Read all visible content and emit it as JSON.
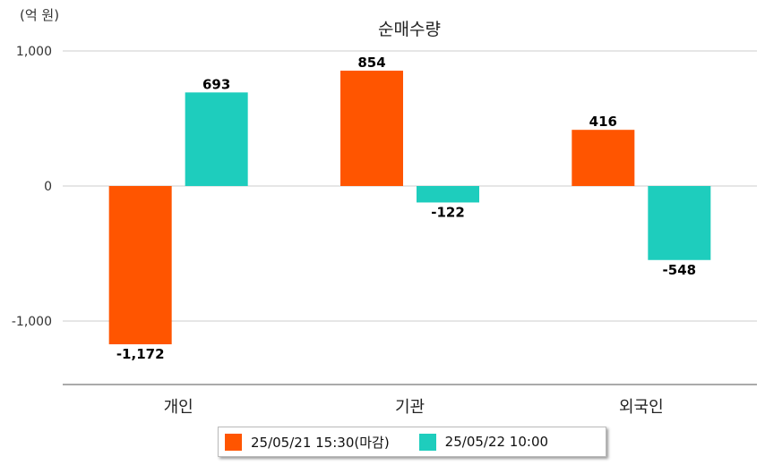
{
  "unit_label": "(억 원)",
  "chart_data": {
    "type": "bar",
    "title": "순매수량",
    "categories": [
      "개인",
      "기관",
      "외국인"
    ],
    "series": [
      {
        "name": "25/05/21 15:30(마감)",
        "color": "#ff5500",
        "values": [
          -1172,
          854,
          416
        ],
        "labels": [
          "-1,172",
          "854",
          "416"
        ]
      },
      {
        "name": "25/05/22 10:00",
        "color": "#1ecdbd",
        "values": [
          693,
          -122,
          -548
        ],
        "labels": [
          "693",
          "-122",
          "-548"
        ]
      }
    ],
    "y_ticks": [
      1000,
      0,
      -1000
    ],
    "y_tick_labels": [
      "1,000",
      "0",
      "-1,000"
    ],
    "ylim": [
      -1470,
      1000
    ],
    "grid": true,
    "legend_position": "bottom"
  }
}
